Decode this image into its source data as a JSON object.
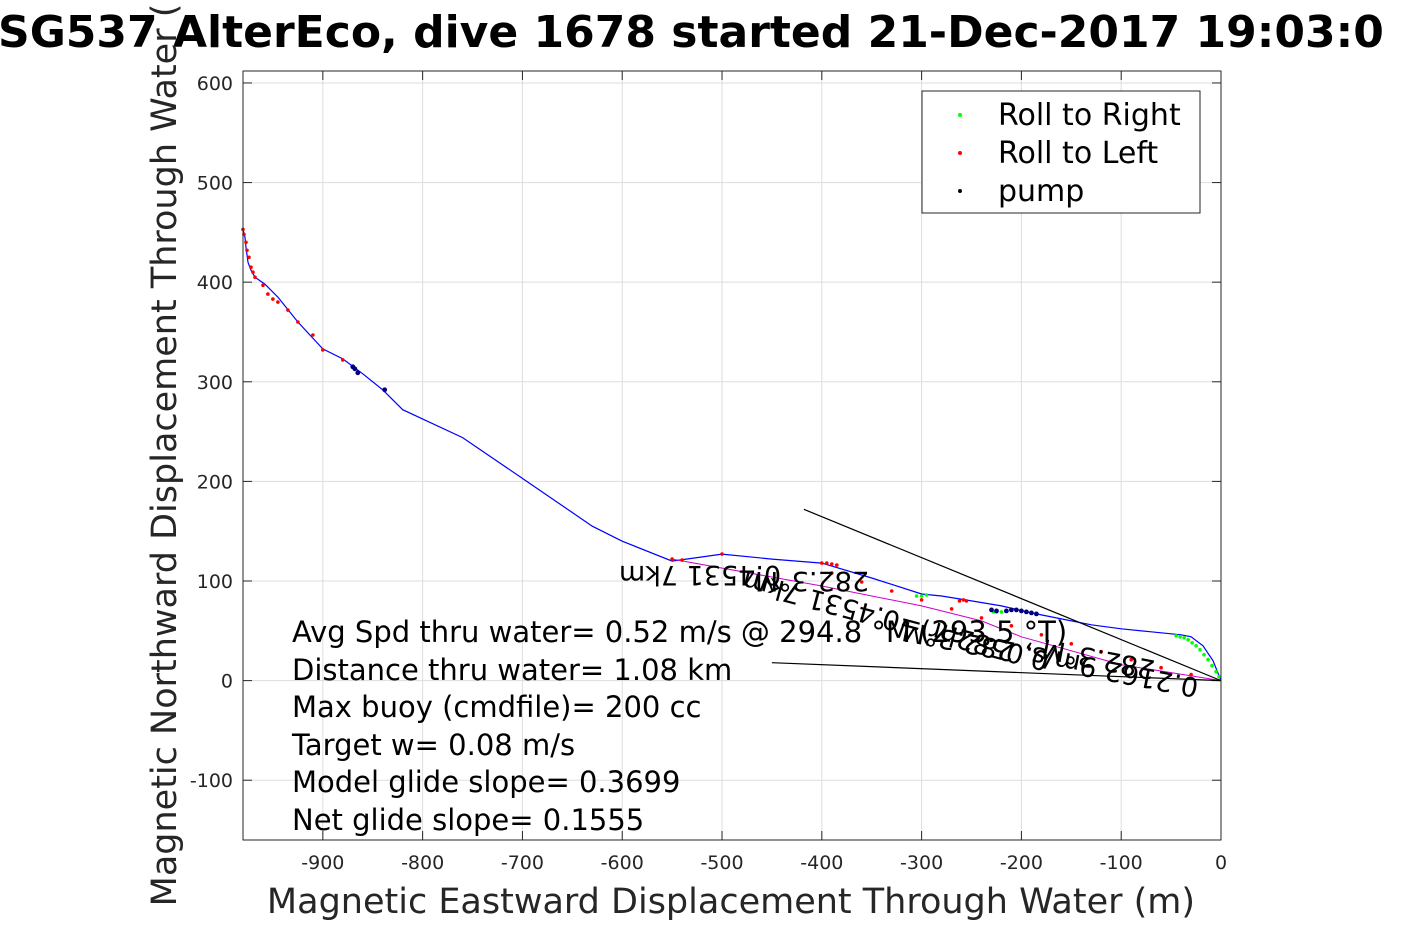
{
  "chart_data": {
    "type": "line",
    "title": "SG537 AlterEco, dive 1678 started 21-Dec-2017 19:03:0",
    "xlabel": "Magnetic Eastward Displacement Through Water (m)",
    "ylabel": "Magnetic Northward Displacement Through Water (",
    "xlim": [
      -980,
      0
    ],
    "ylim": [
      -160,
      612
    ],
    "xticks": [
      -900,
      -800,
      -700,
      -600,
      -500,
      -400,
      -300,
      -200,
      -100,
      0
    ],
    "yticks": [
      -100,
      0,
      100,
      200,
      300,
      400,
      500,
      600
    ],
    "grid": true,
    "legend_position": "top-right",
    "colors": {
      "track": "#0000ff",
      "roll_right": "#00ff00",
      "roll_left": "#ff0000",
      "pump": "#000080",
      "vector": "#000000",
      "grid": "#dddddd"
    },
    "legend": [
      {
        "label": "Roll to Right",
        "color": "#00ff00"
      },
      {
        "label": "Roll to Left",
        "color": "#ff0000"
      },
      {
        "label": "pump",
        "color": "#000000"
      }
    ],
    "series": [
      {
        "kind": "track",
        "x": [
          0,
          -8,
          -18,
          -30,
          -40,
          -70,
          -100,
          -130,
          -160,
          -190,
          -220,
          -250,
          -280,
          -300,
          -350,
          -400,
          -450,
          -500,
          -550,
          -600,
          -630,
          -700,
          -760,
          -820,
          -840,
          -860,
          -880,
          -900,
          -925,
          -945,
          -958,
          -968,
          -972,
          -975,
          -977,
          -978,
          -980
        ],
        "y": [
          0,
          20,
          35,
          44,
          46,
          49,
          52,
          56,
          62,
          68,
          75,
          80,
          85,
          87,
          103,
          118,
          122,
          127,
          120,
          140,
          155,
          203,
          244,
          272,
          292,
          308,
          323,
          333,
          360,
          385,
          398,
          405,
          412,
          420,
          435,
          445,
          453
        ]
      },
      {
        "kind": "return_path",
        "x": [
          0,
          -100,
          -200,
          -240,
          -300,
          -400,
          -550
        ],
        "y": [
          0,
          16,
          44,
          60,
          75,
          95,
          122
        ]
      },
      {
        "kind": "roll_right",
        "x": [
          -2,
          -5,
          -9,
          -13,
          -17,
          -21,
          -25,
          -29,
          -33,
          -37,
          -41,
          -45,
          -295,
          -300,
          -305,
          -220,
          -225,
          -228
        ],
        "y": [
          4,
          9,
          15,
          21,
          26,
          31,
          35,
          38,
          41,
          43,
          44,
          45,
          86,
          85,
          85,
          69,
          69,
          69
        ]
      },
      {
        "kind": "roll_left",
        "x": [
          -980,
          -979,
          -977,
          -976,
          -974,
          -972,
          -970,
          -968,
          -960,
          -955,
          -950,
          -945,
          -935,
          -925,
          -910,
          -900,
          -880,
          -550,
          -540,
          -500,
          -400,
          -395,
          -390,
          -385,
          -262,
          -258,
          -255,
          -30,
          -60,
          -90,
          -120,
          -150,
          -180,
          -210,
          -240,
          -270,
          -300,
          -330,
          -360,
          -390
        ],
        "y": [
          453,
          448,
          440,
          432,
          425,
          415,
          410,
          405,
          397,
          388,
          383,
          380,
          372,
          360,
          347,
          332,
          322,
          122,
          121,
          127,
          118,
          118,
          117,
          116,
          80,
          81,
          80,
          6,
          13,
          21,
          29,
          37,
          46,
          55,
          63,
          72,
          81,
          90,
          99,
          108
        ]
      },
      {
        "kind": "pump",
        "x": [
          -870,
          -868,
          -865,
          -838,
          -230,
          -225,
          -215,
          -210,
          -205,
          -200,
          -195,
          -190,
          -185
        ],
        "y": [
          315,
          313,
          309,
          292,
          71,
          70,
          70,
          71,
          71,
          70,
          69,
          68,
          67
        ]
      }
    ],
    "vectors": [
      {
        "x0": 0,
        "y0": 0,
        "x1": -418,
        "y1": 172
      },
      {
        "x0": 0,
        "y0": 0,
        "x1": -450,
        "y1": 18
      }
    ],
    "vector_labels": [
      {
        "text": "0.4531 7km",
        "angle": 180
      },
      {
        "text": "282.3°M",
        "angle": 180
      },
      {
        "text": "0.0582hr =0.4531 7km",
        "angle": 195
      },
      {
        "text": "282.3°M",
        "angle": 191
      },
      {
        "text": "0.2162 9m/s, 282.3°M",
        "angle": 191
      }
    ],
    "annotations": [
      "Avg Spd thru water=  0.52 m/s @ 294.8 °M (293.5 °T)",
      "Distance thru water=  1.08 km",
      "Max buoy (cmdfile)= 200 cc",
      "Target w= 0.08 m/s",
      "Model glide slope= 0.3699",
      "Net glide slope= 0.1555"
    ]
  }
}
